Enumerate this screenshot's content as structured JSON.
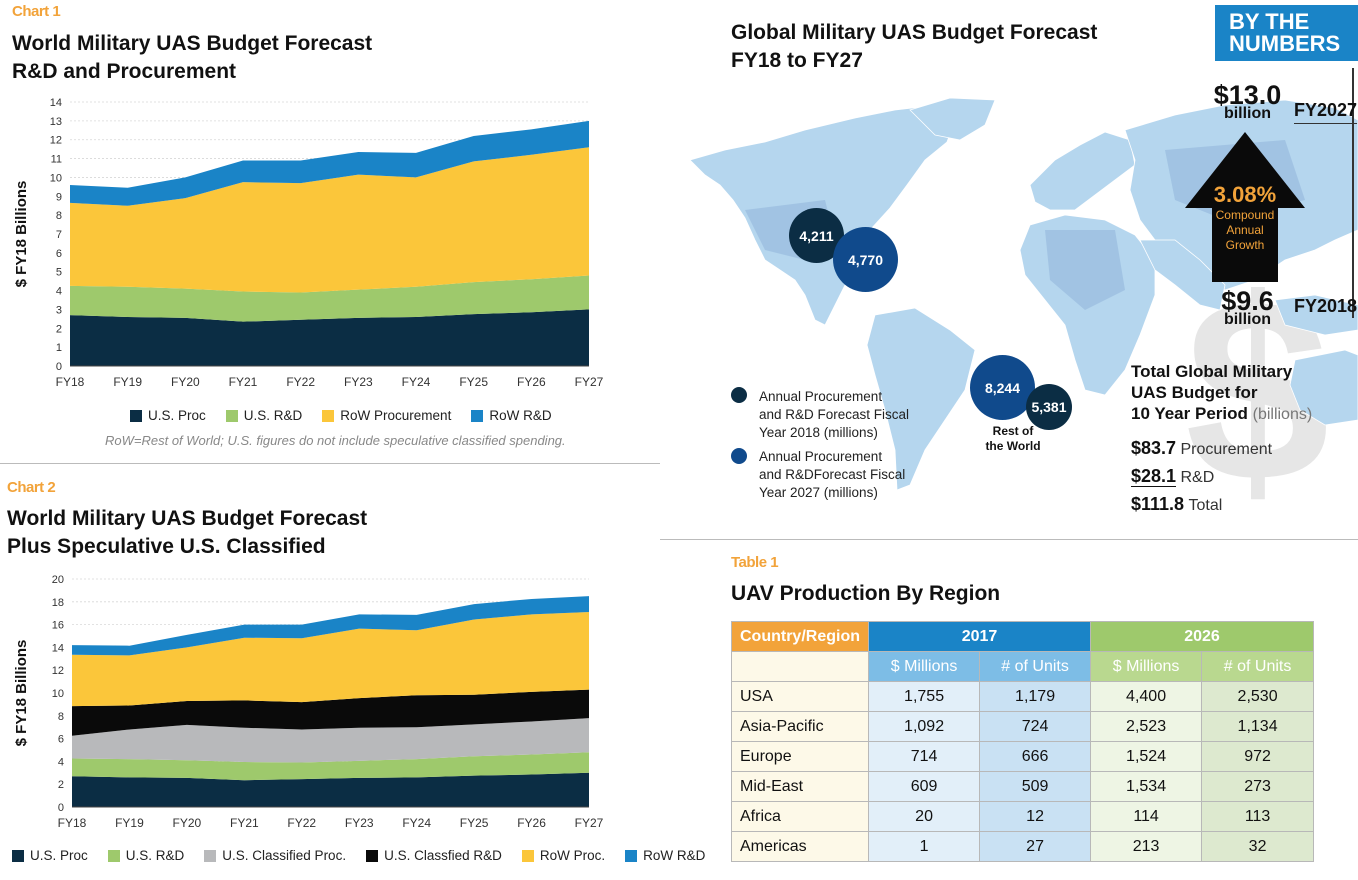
{
  "colors": {
    "us_proc": "#0b2d44",
    "us_rd": "#9ec96c",
    "us_classified_proc": "#b8b9bb",
    "us_classified_rd": "#0a0a0a",
    "row_proc": "#fbc63a",
    "row_rd": "#1a84c7",
    "accent_orange": "#f2a33a",
    "map_land": "#b5d6ee",
    "bubble_2018": "#0b2d44",
    "bubble_2027": "#104a8c"
  },
  "chart1": {
    "tag": "Chart 1",
    "title_line1": "World Military UAS Budget Forecast",
    "title_line2": "R&D and Procurement",
    "note": "RoW=Rest of World; U.S. figures do not include speculative classified spending."
  },
  "chart2": {
    "tag": "Chart 2",
    "title_line1": "World Military UAS Budget Forecast",
    "title_line2": "Plus Speculative U.S. Classified"
  },
  "chart_data": [
    {
      "type": "area",
      "stacked": true,
      "title": "World Military UAS Budget Forecast R&D and Procurement",
      "ylabel": "$ FY18 Billions",
      "xlabel": "",
      "ylim": [
        0,
        14
      ],
      "yticks": [
        0,
        1,
        2,
        3,
        4,
        5,
        6,
        7,
        8,
        9,
        10,
        11,
        12,
        13,
        14
      ],
      "categories": [
        "FY18",
        "FY19",
        "FY20",
        "FY21",
        "FY22",
        "FY23",
        "FY24",
        "FY25",
        "FY26",
        "FY27"
      ],
      "series": [
        {
          "name": "U.S. Proc",
          "values": [
            2.7,
            2.6,
            2.55,
            2.35,
            2.45,
            2.55,
            2.6,
            2.75,
            2.85,
            3.0
          ]
        },
        {
          "name": "U.S. R&D",
          "values": [
            1.55,
            1.6,
            1.55,
            1.6,
            1.45,
            1.5,
            1.6,
            1.7,
            1.75,
            1.8
          ]
        },
        {
          "name": "RoW Procurement",
          "values": [
            4.4,
            4.3,
            4.8,
            5.8,
            5.8,
            6.1,
            5.8,
            6.4,
            6.6,
            6.8
          ]
        },
        {
          "name": "RoW R&D",
          "values": [
            0.95,
            0.95,
            1.1,
            1.15,
            1.2,
            1.2,
            1.3,
            1.35,
            1.35,
            1.4
          ]
        }
      ],
      "legend": "bottom",
      "grid": true
    },
    {
      "type": "area",
      "stacked": true,
      "title": "World Military UAS Budget Forecast Plus Speculative U.S. Classified",
      "ylabel": "$ FY18 Billions",
      "xlabel": "",
      "ylim": [
        0,
        20
      ],
      "yticks": [
        0,
        2,
        4,
        6,
        8,
        10,
        12,
        14,
        16,
        18,
        20
      ],
      "categories": [
        "FY18",
        "FY19",
        "FY20",
        "FY21",
        "FY22",
        "FY23",
        "FY24",
        "FY25",
        "FY26",
        "FY27"
      ],
      "series": [
        {
          "name": "U.S. Proc",
          "values": [
            2.7,
            2.6,
            2.55,
            2.35,
            2.45,
            2.55,
            2.6,
            2.75,
            2.85,
            3.0
          ]
        },
        {
          "name": "U.S. R&D",
          "values": [
            1.55,
            1.6,
            1.55,
            1.6,
            1.45,
            1.5,
            1.6,
            1.7,
            1.75,
            1.8
          ]
        },
        {
          "name": "U.S. Classified Proc.",
          "values": [
            2.0,
            2.6,
            3.1,
            3.0,
            2.9,
            2.9,
            2.8,
            2.8,
            2.9,
            3.0
          ]
        },
        {
          "name": "U.S. Classfied R&D",
          "values": [
            2.6,
            2.1,
            2.1,
            2.4,
            2.4,
            2.6,
            2.8,
            2.6,
            2.6,
            2.5
          ]
        },
        {
          "name": "RoW Proc.",
          "values": [
            4.5,
            4.4,
            4.7,
            5.5,
            5.6,
            6.1,
            5.7,
            6.6,
            6.8,
            6.8
          ]
        },
        {
          "name": "RoW R&D",
          "values": [
            0.85,
            0.85,
            1.1,
            1.15,
            1.2,
            1.25,
            1.35,
            1.35,
            1.35,
            1.4
          ]
        }
      ],
      "legend": "bottom",
      "grid": true
    }
  ],
  "map": {
    "title_line1": "Global Military UAS Budget Forecast",
    "title_line2": "FY18 to FY27",
    "bubbles": {
      "na_2018": "4,211",
      "na_2027": "4,770",
      "row_2027": "8,244",
      "row_2018": "5,381"
    },
    "row_label_line1": "Rest of",
    "row_label_line2": "the World",
    "legend_2018": [
      "Annual Procurement",
      "and R&D Forecast Fiscal",
      "Year 2018 (millions)"
    ],
    "legend_2027": [
      "Annual Procurement",
      "and R&DForecast Fiscal",
      "Year 2027 (millions)"
    ]
  },
  "by_the_numbers": {
    "badge_line1": "BY THE",
    "badge_line2": "NUMBERS",
    "fy2027_value": "$13.0",
    "fy2027_unit": "billion",
    "fy2027_label": "FY2027",
    "growth_value": "3.08%",
    "growth_line1": "Compound",
    "growth_line2": "Annual",
    "growth_line3": "Growth",
    "fy2018_value": "$9.6",
    "fy2018_unit": "billion",
    "fy2018_label": "FY2018",
    "total_title_line1": "Total Global Military",
    "total_title_line2": "UAS Budget for",
    "total_title_line3": "10 Year Period",
    "total_title_unit": "(billions)",
    "totals": [
      {
        "value": "$83.7",
        "label": "Procurement"
      },
      {
        "value": "$28.1",
        "label": "R&D"
      },
      {
        "value": "$111.8",
        "label": "Total"
      }
    ]
  },
  "table1": {
    "tag": "Table 1",
    "title": "UAV Production By Region",
    "header_region": "Country/Region",
    "header_2017": "2017",
    "header_2026": "2026",
    "sub_millions": "$ Millions",
    "sub_units": "# of Units",
    "rows": [
      [
        "USA",
        "1,755",
        "1,179",
        "4,400",
        "2,530"
      ],
      [
        "Asia-Pacific",
        "1,092",
        "724",
        "2,523",
        "1,134"
      ],
      [
        "Europe",
        "714",
        "666",
        "1,524",
        "972"
      ],
      [
        "Mid-East",
        "609",
        "509",
        "1,534",
        "273"
      ],
      [
        "Africa",
        "20",
        "12",
        "114",
        "113"
      ],
      [
        "Americas",
        "1",
        "27",
        "213",
        "32"
      ]
    ]
  }
}
